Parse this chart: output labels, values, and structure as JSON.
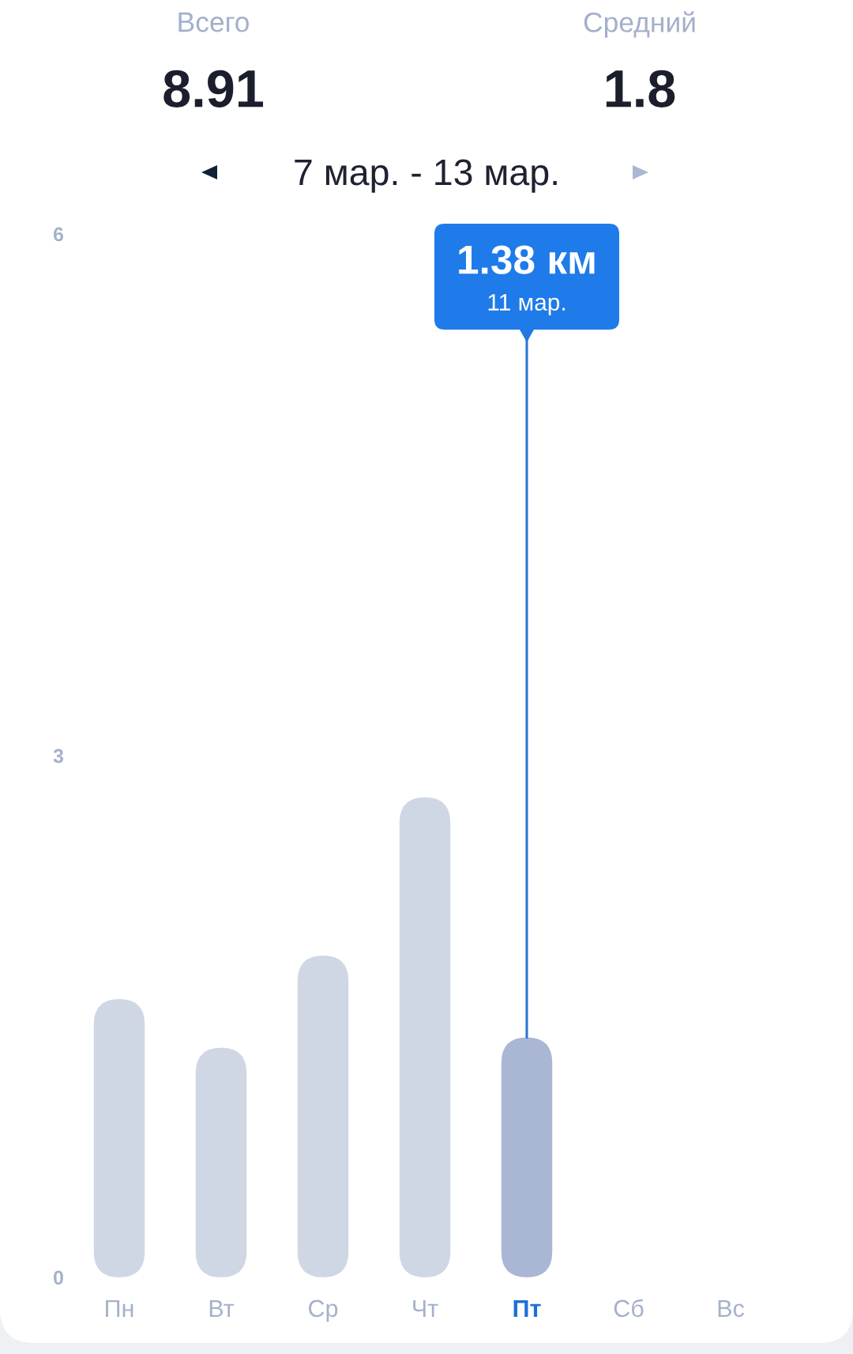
{
  "chart_data": {
    "type": "bar",
    "title": "7 мар. - 13 мар.",
    "categories": [
      "Пн",
      "Вт",
      "Ср",
      "Чт",
      "Пт",
      "Сб",
      "Вс"
    ],
    "values": [
      1.6,
      1.32,
      1.85,
      2.76,
      1.38,
      null,
      null
    ],
    "colors": [
      "#cfd7e5",
      "#cfd7e5",
      "#cfd7e5",
      "#cfd7e5",
      "#a9b7d4",
      "#cfd7e5",
      "#cfd7e5"
    ],
    "ylim": [
      0,
      6
    ],
    "yticks": [
      0,
      3,
      6
    ],
    "annotations": [
      "Всего",
      "8.91",
      "Средний",
      "1.8",
      {
        "text": "11 мар.",
        "x": "Пт",
        "y": 1.38
      },
      "1.38 км"
    ]
  }
}
